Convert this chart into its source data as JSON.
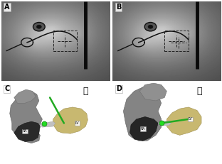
{
  "figure_width": 3.12,
  "figure_height": 2.31,
  "dpi": 100,
  "background_color": "#ffffff",
  "panel_labels": [
    "A",
    "B",
    "C",
    "D"
  ],
  "panel_label_fontsize": 7,
  "panel_label_color": "#000000",
  "panel_border_color": "#000000",
  "panel_border_lw": 0.8,
  "heart_icon_color": "#b86820",
  "ra_label": "RA",
  "lv_label": "LV"
}
